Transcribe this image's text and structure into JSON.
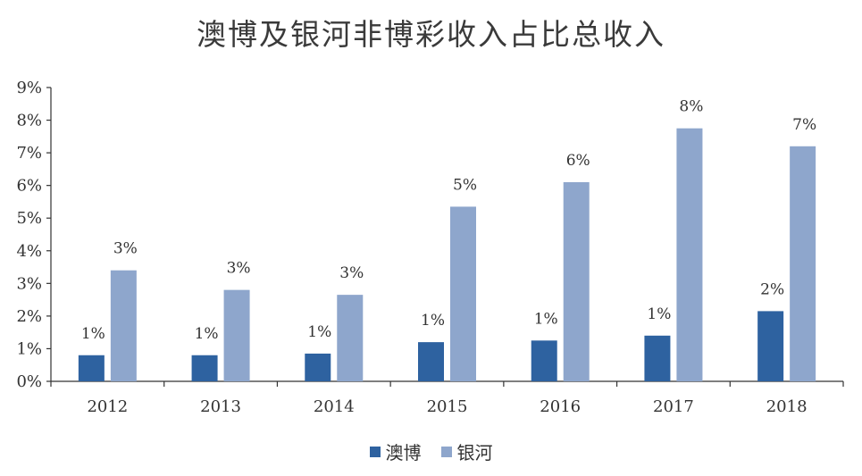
{
  "chart_data": {
    "type": "bar",
    "title": "澳博及银河非博彩收入占比总收入",
    "categories": [
      "2012",
      "2013",
      "2014",
      "2015",
      "2016",
      "2017",
      "2018"
    ],
    "series": [
      {
        "name": "澳博",
        "color": "#2e62a0",
        "values": [
          0.8,
          0.8,
          0.85,
          1.2,
          1.25,
          1.4,
          2.15
        ],
        "labels": [
          "1%",
          "1%",
          "1%",
          "1%",
          "1%",
          "1%",
          "2%"
        ]
      },
      {
        "name": "银河",
        "color": "#8ea6cc",
        "values": [
          3.4,
          2.8,
          2.65,
          5.35,
          6.1,
          7.75,
          7.2
        ],
        "labels": [
          "3%",
          "3%",
          "3%",
          "5%",
          "6%",
          "8%",
          "7%"
        ]
      }
    ],
    "y_ticks": [
      "0%",
      "1%",
      "2%",
      "3%",
      "4%",
      "5%",
      "6%",
      "7%",
      "8%",
      "9%"
    ],
    "ylim": [
      0,
      9
    ],
    "xlabel": "",
    "ylabel": "",
    "grid": false,
    "legend_position": "bottom"
  }
}
